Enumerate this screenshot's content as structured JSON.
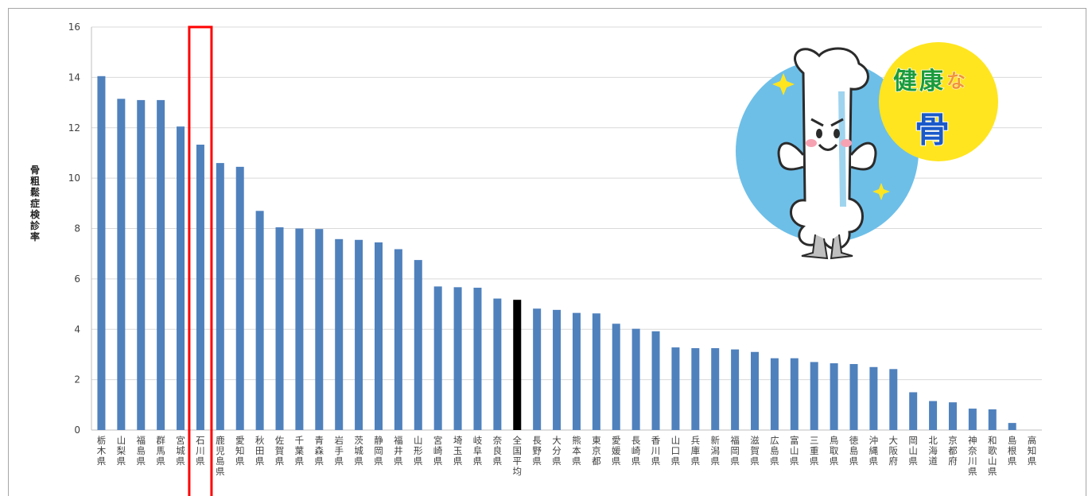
{
  "chart_data": {
    "type": "bar",
    "title": "",
    "ylabel": "骨粗鬆症検診率",
    "xlabel": "",
    "ylim": [
      0,
      16
    ],
    "yticks": [
      0,
      2,
      4,
      6,
      8,
      10,
      12,
      14,
      16
    ],
    "grid": true,
    "legend": "none",
    "bar_color": "#4f81bd",
    "highlight_bar_color": "#000000",
    "highlight_box_color": "#ff0000",
    "highlight_box_category": "石川県",
    "highlight_bar_category": "全国平均",
    "categories": [
      "栃木県",
      "山梨県",
      "福島県",
      "群馬県",
      "宮城県",
      "石川県",
      "鹿児島県",
      "愛知県",
      "秋田県",
      "佐賀県",
      "千葉県",
      "青森県",
      "岩手県",
      "茨城県",
      "静岡県",
      "福井県",
      "山形県",
      "宮崎県",
      "埼玉県",
      "岐阜県",
      "奈良県",
      "全国平均",
      "長野県",
      "大分県",
      "熊本県",
      "東京都",
      "愛媛県",
      "長崎県",
      "香川県",
      "山口県",
      "兵庫県",
      "新潟県",
      "福岡県",
      "滋賀県",
      "広島県",
      "富山県",
      "三重県",
      "鳥取県",
      "徳島県",
      "沖縄県",
      "大阪府",
      "岡山県",
      "北海道",
      "京都府",
      "神奈川県",
      "和歌山県",
      "島根県",
      "高知県"
    ],
    "values": [
      14.05,
      13.15,
      13.1,
      13.1,
      12.05,
      11.33,
      10.6,
      10.45,
      8.7,
      8.05,
      8.0,
      7.98,
      7.58,
      7.55,
      7.45,
      7.18,
      6.75,
      5.7,
      5.67,
      5.65,
      5.22,
      5.17,
      4.82,
      4.77,
      4.65,
      4.63,
      4.22,
      4.02,
      3.92,
      3.28,
      3.25,
      3.25,
      3.2,
      3.1,
      2.85,
      2.85,
      2.7,
      2.65,
      2.62,
      2.5,
      2.42,
      1.5,
      1.15,
      1.1,
      0.85,
      0.82,
      0.28,
      0.0
    ]
  },
  "mascot": {
    "title_chars_a": [
      "健",
      "康"
    ],
    "title_char_b": "な",
    "title_char_c": "骨",
    "icon": "happy-bone-character-icon"
  }
}
